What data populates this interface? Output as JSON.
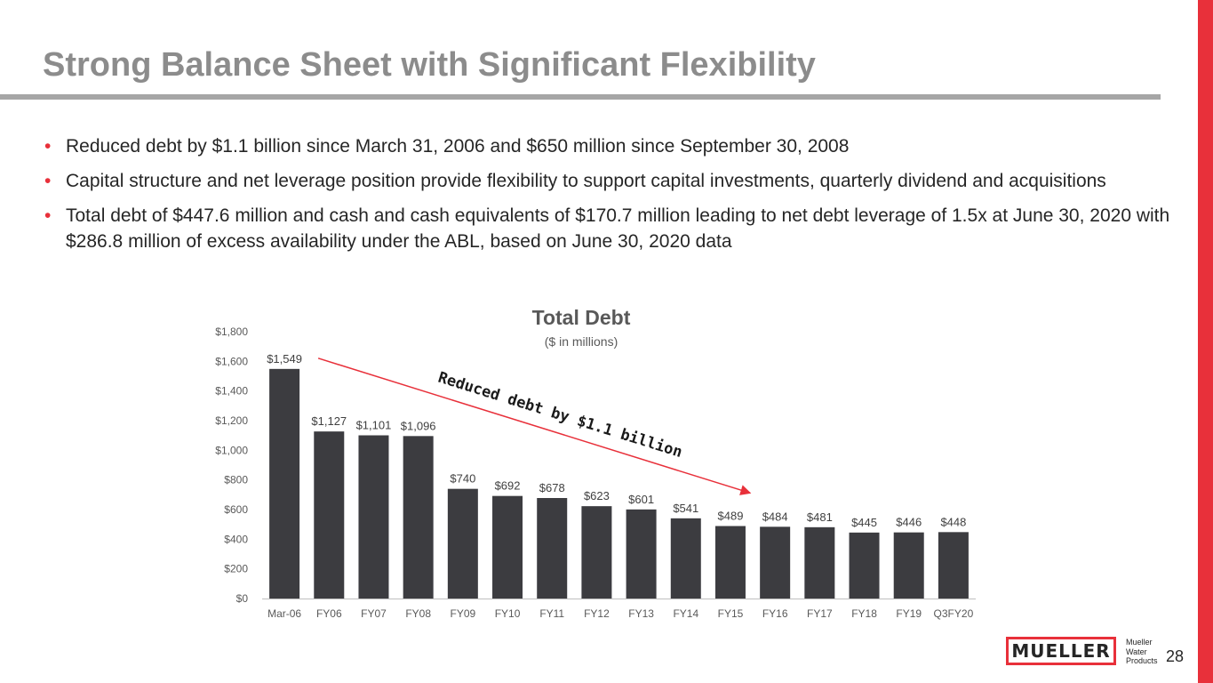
{
  "slide": {
    "title": "Strong Balance Sheet with Significant Flexibility",
    "bullets": [
      "Reduced debt by $1.1 billion since March 31, 2006 and $650 million since September 30, 2008",
      "Capital structure and net leverage position provide flexibility to support capital investments, quarterly dividend and acquisitions",
      "Total debt of $447.6 million and cash and cash equivalents of $170.7 million leading to net debt leverage of 1.5x at June 30, 2020 with $286.8 million of excess availability under the ABL, based on June 30, 2020 data"
    ],
    "bullet_glyph": "•",
    "page_number": "28",
    "logo": {
      "wordmark": "MUELLER",
      "lines": [
        "Mueller",
        "Water",
        "Products"
      ]
    },
    "colors": {
      "accent": "#e8303a",
      "bar": "#3c3c40",
      "title": "#8c8c8c",
      "rule": "#a6a6a6"
    }
  },
  "chart_data": {
    "type": "bar",
    "title": "Total Debt",
    "subtitle": "($ in millions)",
    "categories": [
      "Mar-06",
      "FY06",
      "FY07",
      "FY08",
      "FY09",
      "FY10",
      "FY11",
      "FY12",
      "FY13",
      "FY14",
      "FY15",
      "FY16",
      "FY17",
      "FY18",
      "FY19",
      "Q3FY20"
    ],
    "values": [
      1549,
      1127,
      1101,
      1096,
      740,
      692,
      678,
      623,
      601,
      541,
      489,
      484,
      481,
      445,
      446,
      448
    ],
    "data_labels": [
      "$1,549",
      "$1,127",
      "$1,101",
      "$1,096",
      "$740",
      "$692",
      "$678",
      "$623",
      "$601",
      "$541",
      "$489",
      "$484",
      "$481",
      "$445",
      "$446",
      "$448"
    ],
    "ylim": [
      0,
      1800
    ],
    "yticks": [
      0,
      200,
      400,
      600,
      800,
      1000,
      1200,
      1400,
      1600,
      1800
    ],
    "ytick_labels": [
      "$0",
      "$200",
      "$400",
      "$600",
      "$800",
      "$1,000",
      "$1,200",
      "$1,400",
      "$1,600",
      "$1,800"
    ],
    "grid": false,
    "annotation": {
      "text": "Reduced debt by $1.1 billion",
      "arrow_from_category": "Mar-06",
      "arrow_to_category": "FY16",
      "color": "#e8303a"
    }
  }
}
